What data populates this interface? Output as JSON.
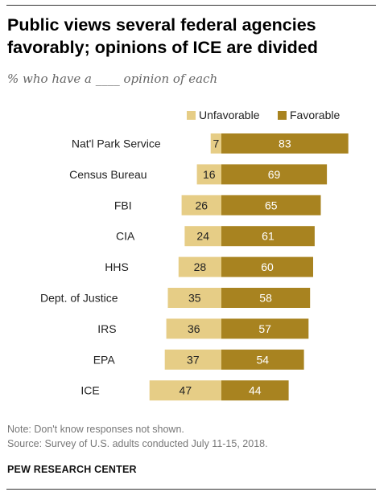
{
  "header": {
    "title_line1": "Public views several federal agencies",
    "title_line2": "favorably; opinions of ICE are divided",
    "subtitle": "% who have a ____ opinion of each"
  },
  "legend": {
    "unfavorable": "Unfavorable",
    "favorable": "Favorable"
  },
  "footer": {
    "note": "Note: Don't know responses not shown.",
    "source": "Source: Survey of U.S. adults conducted July 11-15, 2018.",
    "brand": "PEW RESEARCH CENTER"
  },
  "colors": {
    "unfavorable": "#e6cd86",
    "favorable": "#a88320",
    "label_dark": "#222222",
    "label_light": "#ffffff"
  },
  "chart_data": {
    "type": "bar",
    "orientation": "horizontal-diverging",
    "categories": [
      "Nat'l Park Service",
      "Census Bureau",
      "FBI",
      "CIA",
      "HHS",
      "Dept. of Justice",
      "IRS",
      "EPA",
      "ICE"
    ],
    "series": [
      {
        "name": "Unfavorable",
        "values": [
          7,
          16,
          26,
          24,
          28,
          35,
          36,
          37,
          47
        ]
      },
      {
        "name": "Favorable",
        "values": [
          83,
          69,
          65,
          61,
          60,
          58,
          57,
          54,
          44
        ]
      }
    ],
    "legend_position": "top",
    "grid": false
  }
}
